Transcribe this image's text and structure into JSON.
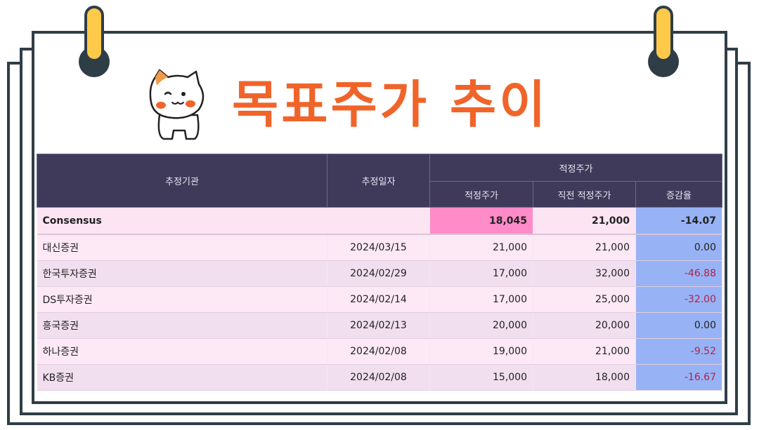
{
  "title": "목표주가 추이",
  "table": {
    "headers": {
      "agency": "추정기관",
      "date": "추정일자",
      "group": "적정주가",
      "target": "적정주가",
      "prev": "직전 적정주가",
      "change": "증감율"
    },
    "consensus": {
      "agency": "Consensus",
      "date": "",
      "target": "18,045",
      "prev": "21,000",
      "change": "-14.07"
    },
    "rows": [
      {
        "agency": "대신증권",
        "date": "2024/03/15",
        "target": "21,000",
        "prev": "21,000",
        "change": "0.00"
      },
      {
        "agency": "한국투자증권",
        "date": "2024/02/29",
        "target": "17,000",
        "prev": "32,000",
        "change": "-46.88"
      },
      {
        "agency": "DS투자증권",
        "date": "2024/02/14",
        "target": "17,000",
        "prev": "25,000",
        "change": "-32.00"
      },
      {
        "agency": "흥국증권",
        "date": "2024/02/13",
        "target": "20,000",
        "prev": "20,000",
        "change": "0.00"
      },
      {
        "agency": "하나증권",
        "date": "2024/02/08",
        "target": "19,000",
        "prev": "21,000",
        "change": "-9.52"
      },
      {
        "agency": "KB증권",
        "date": "2024/02/08",
        "target": "15,000",
        "prev": "18,000",
        "change": "-16.67"
      }
    ]
  },
  "colors": {
    "title": "#f0642a",
    "header_bg": "#3f3a5a",
    "consensus_target_bg": "#ff8bc9",
    "change_col_bg": "#97b3f5",
    "negative_text": "#b0234a",
    "clip": "#ffc94a",
    "frame": "#2f3e46"
  },
  "icons": [
    "binder-clip-icon",
    "cat-mascot-icon"
  ]
}
